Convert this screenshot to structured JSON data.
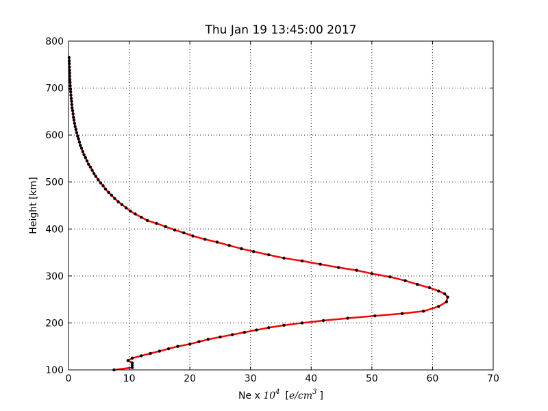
{
  "chart_data": {
    "type": "line",
    "title": "Thu Jan 19 13:45:00 2017",
    "xlabel": {
      "prefix": "Ne x ",
      "base": "10",
      "exp": "4",
      "unit_open": "[",
      "unit_num": "e/cm",
      "unit_exp": "3",
      "unit_close": "]"
    },
    "ylabel": "Height [km]",
    "xlim": [
      0,
      70
    ],
    "ylim": [
      100,
      800
    ],
    "grid": true,
    "line_color": "#ff0000",
    "marker_color": "#000000",
    "xticks": [
      "0",
      "10",
      "20",
      "30",
      "40",
      "50",
      "60",
      "70"
    ],
    "yticks": [
      "100",
      "200",
      "300",
      "400",
      "500",
      "600",
      "700",
      "800"
    ],
    "series": [
      {
        "x": [
          7.5,
          10.5,
          10.5,
          10.5,
          9.8,
          10.5,
          12.0,
          13.5,
          15.0,
          16.5,
          18.0,
          20.0,
          21.5,
          23.0,
          25.0,
          27.0,
          29.0,
          31.0,
          33.0,
          35.5,
          38.5,
          42.0,
          46.0,
          50.5,
          55.0,
          58.5,
          61.0,
          62.3,
          62.5,
          62.0,
          61.0,
          59.5,
          57.5,
          55.5,
          53.0,
          50.0,
          47.5,
          44.5,
          41.5,
          38.5,
          35.5,
          33.0,
          30.5,
          28.5,
          26.5,
          24.5,
          22.5,
          20.5,
          19.0,
          17.5,
          16.0,
          14.5,
          13.0,
          12.0,
          11.0,
          10.2,
          9.5,
          8.8,
          8.2,
          7.6,
          7.1,
          6.6,
          6.1,
          5.7,
          5.3,
          4.9,
          4.5,
          4.2,
          3.9,
          3.6,
          3.3,
          3.05,
          2.8,
          2.55,
          2.35,
          2.15,
          1.95,
          1.8,
          1.65,
          1.5,
          1.35,
          1.22,
          1.1,
          1.0,
          0.9,
          0.82,
          0.75,
          0.68,
          0.6,
          0.55,
          0.5,
          0.45,
          0.4,
          0.36,
          0.32,
          0.29,
          0.26,
          0.23,
          0.21,
          0.19,
          0.17,
          0.15,
          0.13,
          0.12,
          0.1
        ],
        "y": [
          100,
          105,
          110,
          115,
          120,
          125,
          130,
          135,
          140,
          145,
          150,
          155,
          160,
          165,
          170,
          175,
          180,
          185,
          190,
          195,
          200,
          205,
          210,
          215,
          220,
          225,
          235,
          245,
          255,
          262,
          268,
          275,
          282,
          290,
          298,
          305,
          312,
          318,
          325,
          332,
          338,
          345,
          352,
          358,
          365,
          372,
          378,
          385,
          392,
          398,
          405,
          412,
          418,
          425,
          432,
          438,
          445,
          452,
          458,
          465,
          472,
          478,
          485,
          492,
          498,
          505,
          512,
          518,
          525,
          532,
          538,
          545,
          552,
          558,
          565,
          572,
          578,
          585,
          592,
          598,
          605,
          612,
          618,
          625,
          632,
          638,
          645,
          652,
          658,
          665,
          672,
          678,
          685,
          692,
          698,
          705,
          712,
          718,
          725,
          732,
          738,
          745,
          752,
          758,
          765
        ]
      }
    ]
  }
}
